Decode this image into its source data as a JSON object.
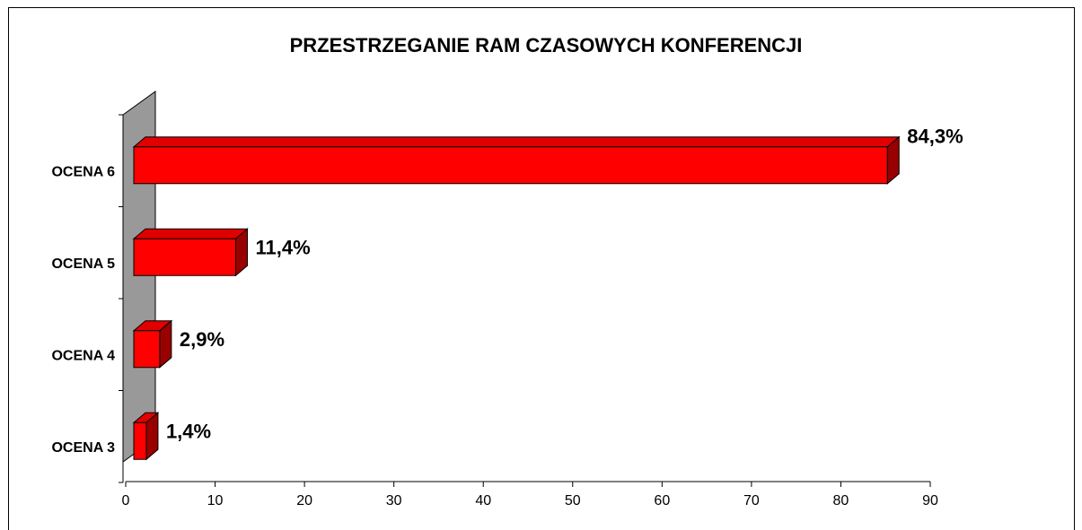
{
  "chart_data": {
    "type": "bar3d_horizontal",
    "title": "PRZESTRZEGANIE RAM CZASOWYCH KONFERENCJI",
    "categories": [
      "OCENA 6",
      "OCENA 5",
      "OCENA 4",
      "OCENA 3"
    ],
    "values": [
      84.3,
      11.4,
      2.9,
      1.4
    ],
    "value_labels": [
      "84,3%",
      "11,4%",
      "2,9%",
      "1,4%"
    ],
    "color": "#ff0000",
    "xlim": [
      0,
      90
    ],
    "xticks": [
      0,
      10,
      20,
      30,
      40,
      50,
      60,
      70,
      80,
      90
    ]
  }
}
